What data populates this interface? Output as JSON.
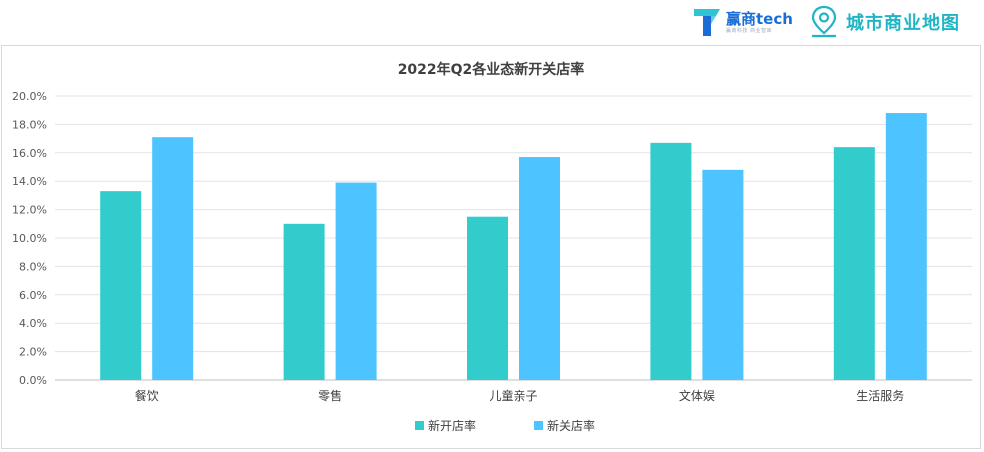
{
  "branding": {
    "logo1_text": "赢商tech",
    "logo1_sub": "赢商科技 商业智库",
    "logo1_icon": "winshang-t-logo-icon",
    "logo2_text": "城市商业地图",
    "logo2_icon": "map-pin-icon"
  },
  "chart_data": {
    "type": "bar",
    "title": "2022年Q2各业态新开关店率",
    "categories": [
      "餐饮",
      "零售",
      "儿童亲子",
      "文体娱",
      "生活服务"
    ],
    "series": [
      {
        "name": "新开店率",
        "color": "#33cccc",
        "values": [
          13.3,
          11.0,
          11.5,
          16.7,
          16.4
        ]
      },
      {
        "name": "新关店率",
        "color": "#4dc3ff",
        "values": [
          17.1,
          13.9,
          15.7,
          14.8,
          18.8
        ]
      }
    ],
    "ylim": [
      0,
      20
    ],
    "yticks": [
      "0.0%",
      "2.0%",
      "4.0%",
      "6.0%",
      "8.0%",
      "10.0%",
      "12.0%",
      "14.0%",
      "16.0%",
      "18.0%",
      "20.0%"
    ],
    "grid": true,
    "legend": "bottom"
  }
}
